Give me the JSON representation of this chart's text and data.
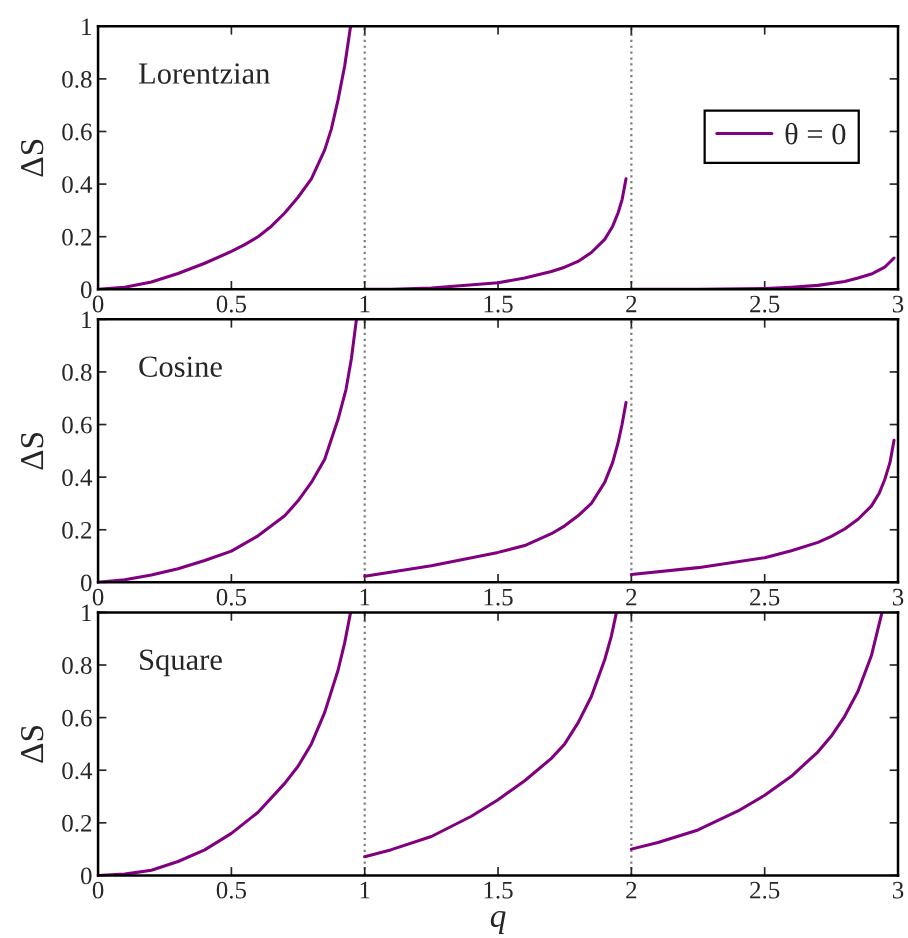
{
  "chart_data": [
    {
      "type": "line",
      "ylabel": "ΔS",
      "annotations": [
        "Lorentzian"
      ],
      "xlim": [
        0,
        3
      ],
      "xticks": [
        0,
        0.5,
        1,
        1.5,
        2,
        2.5,
        3
      ],
      "ylim": [
        0,
        1
      ],
      "yticks": [
        0,
        0.2,
        0.4,
        0.6,
        0.8,
        1
      ],
      "legend": "right",
      "line_style": "solid",
      "ref_lines": [
        {
          "axis": "x",
          "value": 1,
          "color": "#808080",
          "line_style": "dotted"
        },
        {
          "axis": "x",
          "value": 2,
          "color": "#808080",
          "line_style": "dotted"
        }
      ],
      "series": [
        {
          "name": "θ = 0",
          "color": "#800080",
          "x": [
            0,
            0.1,
            0.2,
            0.3,
            0.4,
            0.5,
            0.55,
            0.6,
            0.65,
            0.7,
            0.75,
            0.8,
            0.85,
            0.875,
            0.9,
            0.925,
            0.947,
            0.99,
            1,
            1.1,
            1.25,
            1.5,
            1.6,
            1.7,
            1.75,
            1.8,
            1.85,
            1.9,
            1.93,
            1.95,
            1.965,
            1.98,
            1.99,
            2,
            2.25,
            2.5,
            2.6,
            2.7,
            2.8,
            2.85,
            2.9,
            2.95,
            2.985
          ],
          "values": [
            0,
            0.008,
            0.028,
            0.06,
            0.099,
            0.144,
            0.17,
            0.2,
            0.24,
            0.29,
            0.35,
            0.42,
            0.53,
            0.61,
            0.72,
            0.85,
            1,
            null,
            0,
            0,
            0.005,
            0.025,
            0.043,
            0.068,
            0.084,
            0.106,
            0.14,
            0.19,
            0.24,
            0.29,
            0.34,
            0.42,
            null,
            0,
            0,
            0.003,
            0.008,
            0.015,
            0.03,
            0.043,
            0.058,
            0.084,
            0.119
          ]
        }
      ]
    },
    {
      "type": "line",
      "ylabel": "ΔS",
      "annotations": [
        "Cosine"
      ],
      "xlim": [
        0,
        3
      ],
      "xticks": [
        0,
        0.5,
        1,
        1.5,
        2,
        2.5,
        3
      ],
      "ylim": [
        0,
        1
      ],
      "yticks": [
        0,
        0.2,
        0.4,
        0.6,
        0.8,
        1
      ],
      "line_style": "solid",
      "ref_lines": [
        {
          "axis": "x",
          "value": 1,
          "color": "#808080",
          "line_style": "dotted"
        },
        {
          "axis": "x",
          "value": 2,
          "color": "#808080",
          "line_style": "dotted"
        }
      ],
      "series": [
        {
          "color": "#800080",
          "x": [
            0,
            0.1,
            0.2,
            0.3,
            0.4,
            0.5,
            0.6,
            0.7,
            0.75,
            0.8,
            0.85,
            0.9,
            0.93,
            0.95,
            0.969,
            0.99,
            1,
            1.25,
            1.5,
            1.6,
            1.7,
            1.75,
            1.8,
            1.85,
            1.9,
            1.93,
            1.95,
            1.965,
            1.98,
            1.99,
            2,
            2.25,
            2.5,
            2.6,
            2.7,
            2.75,
            2.8,
            2.85,
            2.9,
            2.93,
            2.95,
            2.97,
            2.985
          ],
          "values": [
            0,
            0.01,
            0.028,
            0.052,
            0.083,
            0.119,
            0.177,
            0.253,
            0.31,
            0.38,
            0.468,
            0.62,
            0.734,
            0.85,
            1,
            null,
            0.023,
            0.063,
            0.114,
            0.14,
            0.185,
            0.215,
            0.253,
            0.3,
            0.38,
            0.456,
            0.53,
            0.6,
            0.684,
            null,
            0.03,
            0.056,
            0.094,
            0.12,
            0.152,
            0.175,
            0.203,
            0.24,
            0.29,
            0.34,
            0.39,
            0.456,
            0.54
          ]
        }
      ]
    },
    {
      "type": "line",
      "xlabel": "q",
      "ylabel": "ΔS",
      "annotations": [
        "Square"
      ],
      "xlim": [
        0,
        3
      ],
      "xticks": [
        0,
        0.5,
        1,
        1.5,
        2,
        2.5,
        3
      ],
      "ylim": [
        0,
        1
      ],
      "yticks": [
        0,
        0.2,
        0.4,
        0.6,
        0.8,
        1
      ],
      "line_style": "solid",
      "ref_lines": [
        {
          "axis": "x",
          "value": 1,
          "color": "#808080",
          "line_style": "dotted"
        },
        {
          "axis": "x",
          "value": 2,
          "color": "#808080",
          "line_style": "dotted"
        }
      ],
      "series": [
        {
          "color": "#800080",
          "x": [
            0,
            0.1,
            0.2,
            0.3,
            0.4,
            0.5,
            0.6,
            0.7,
            0.75,
            0.8,
            0.85,
            0.9,
            0.925,
            0.947,
            0.99,
            1,
            1.1,
            1.25,
            1.4,
            1.5,
            1.6,
            1.7,
            1.75,
            1.8,
            1.85,
            1.9,
            1.925,
            1.944,
            1.99,
            2,
            2.1,
            2.25,
            2.4,
            2.5,
            2.6,
            2.7,
            2.75,
            2.8,
            2.85,
            2.9,
            2.94
          ],
          "values": [
            0,
            0.005,
            0.02,
            0.053,
            0.097,
            0.16,
            0.24,
            0.35,
            0.415,
            0.5,
            0.62,
            0.78,
            0.885,
            1,
            null,
            0.071,
            0.098,
            0.148,
            0.225,
            0.288,
            0.36,
            0.445,
            0.5,
            0.58,
            0.68,
            0.82,
            0.91,
            1,
            null,
            0.1,
            0.125,
            0.173,
            0.245,
            0.305,
            0.377,
            0.47,
            0.53,
            0.605,
            0.7,
            0.835,
            1
          ]
        }
      ]
    }
  ]
}
